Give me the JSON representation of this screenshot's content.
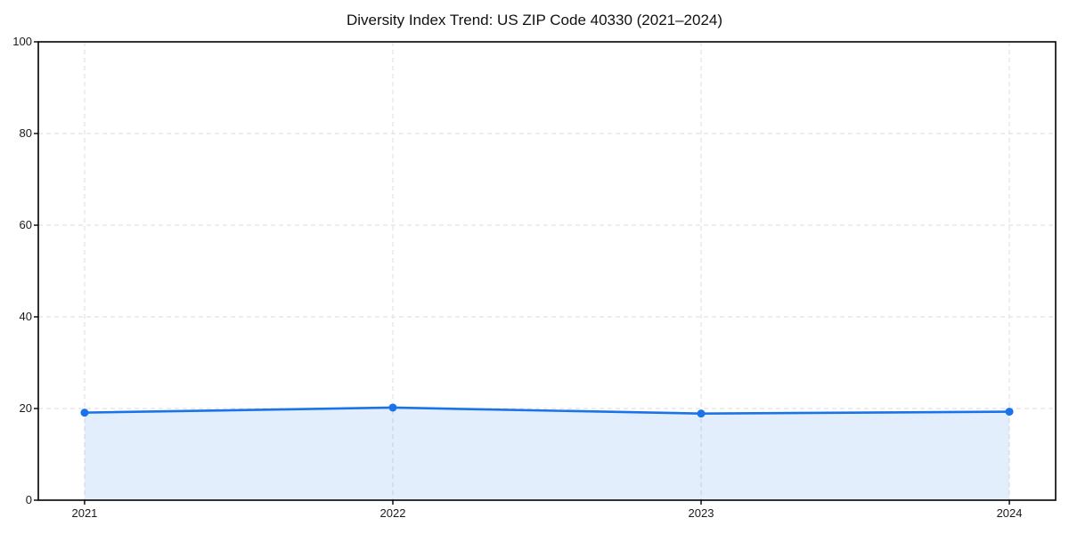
{
  "chart_data": {
    "type": "area",
    "title": "Diversity Index Trend: US ZIP Code 40330 (2021–2024)",
    "categories": [
      "2021",
      "2022",
      "2023",
      "2024"
    ],
    "series": [
      {
        "name": "Diversity Index",
        "values": [
          19.1,
          20.2,
          18.9,
          19.3
        ]
      }
    ],
    "xlabel": "",
    "ylabel": "",
    "ylim": [
      0,
      100
    ],
    "yticks": [
      0,
      20,
      40,
      60,
      80,
      100
    ],
    "grid": true,
    "grid_style": "dashed",
    "legend": false,
    "colors": {
      "line": "#1a73e8",
      "marker": "#1a73e8",
      "fill": "rgba(26,115,232,0.12)",
      "grid": "#e2e2e2",
      "axis": "#000000",
      "text": "#1a1a1a"
    }
  }
}
